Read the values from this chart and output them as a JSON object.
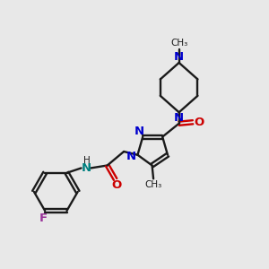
{
  "bg_color": "#e8e8e8",
  "bond_color": "#1a1a1a",
  "nitrogen_color": "#0000cc",
  "oxygen_color": "#cc0000",
  "fluorine_color": "#993399",
  "nh_color": "#008080",
  "lw": 1.7,
  "fs": 9.5,
  "fs_small": 7.5,
  "xlim": [
    0,
    10
  ],
  "ylim": [
    0,
    10
  ]
}
